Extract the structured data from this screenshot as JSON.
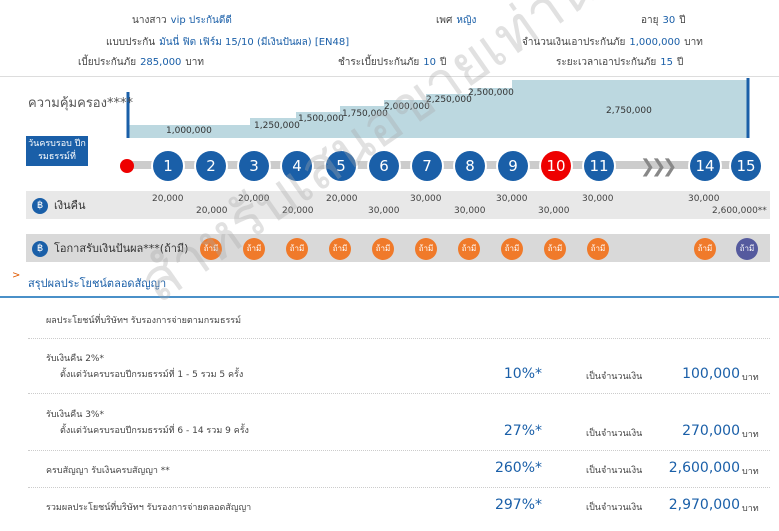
{
  "customer": {
    "title_label": "นางสาว",
    "name": "vip ประกันดีดี",
    "gender_label": "เพศ",
    "gender": "หญิง",
    "age_label": "อายุ",
    "age": "30",
    "age_unit": "ปี"
  },
  "plan": {
    "plan_label": "แบบประกัน",
    "plan_name": "มันนี่ ฟิต เฟิร์ม 15/10 (มีเงินปันผล) [EN48]",
    "sum_label": "จำนวนเงินเอาประกันภัย",
    "sum_value": "1,000,000",
    "sum_unit": "บาท"
  },
  "premium": {
    "premium_label": "เบี้ยประกันภัย",
    "premium_value": "285,000",
    "premium_unit": "บาท",
    "pay_label": "ชำระเบี้ยประกันภัย",
    "pay_years": "10",
    "pay_unit": "ปี",
    "term_label": "ระยะเวลาเอาประกันภัย",
    "term_years": "15",
    "term_unit": "ปี"
  },
  "coverage": {
    "title": "ความคุ้มครอง****",
    "steps": [
      "1,000,000",
      "1,250,000",
      "1,500,000",
      "1,750,000",
      "2,000,000",
      "2,250,000",
      "2,500,000",
      "2,750,000"
    ],
    "badge": "วันครบรอบ ปีกรมธรรม์ที่"
  },
  "timeline": {
    "years": [
      "1",
      "2",
      "3",
      "4",
      "5",
      "6",
      "7",
      "8",
      "9",
      "10",
      "11",
      "14",
      "15"
    ],
    "current": "10"
  },
  "cashback": {
    "label": "เงินคืน",
    "top": [
      "20,000",
      "20,000",
      "20,000",
      "30,000",
      "30,000",
      "30,000"
    ],
    "bottom": [
      "20,000",
      "20,000",
      "30,000",
      "30,000",
      "30,000"
    ],
    "last": "30,000",
    "maturity": "2,600,000**"
  },
  "dividend": {
    "label": "โอกาสรับเงินปันผล***(ถ้ามี)",
    "marker": "ถ้ามี"
  },
  "summary": {
    "title": "สรุปผลประโยชน์ตลอดสัญญา",
    "subtitle": "ผลประโยชน์ที่บริษัทฯ รับรองการจ่ายตามกรมธรรม์",
    "rows": [
      {
        "title": "รับเงินคืน 2%*",
        "desc": "ตั้งแต่วันครบรอบปีกรมธรรม์ที่ 1 - 5 รวม 5 ครั้ง",
        "pct": "10%*",
        "mid": "เป็นจำนวนเงิน",
        "amt": "100,000",
        "unit": "บาท"
      },
      {
        "title": "รับเงินคืน 3%*",
        "desc": "ตั้งแต่วันครบรอบปีกรมธรรม์ที่ 6 - 14 รวม 9 ครั้ง",
        "pct": "27%*",
        "mid": "เป็นจำนวนเงิน",
        "amt": "270,000",
        "unit": "บาท"
      },
      {
        "title": "ครบสัญญา รับเงินครบสัญญา **",
        "desc": "",
        "pct": "260%*",
        "mid": "เป็นจำนวนเงิน",
        "amt": "2,600,000",
        "unit": "บาท"
      },
      {
        "title": "รวมผลประโยชน์ที่บริษัทฯ รับรองการจ่ายตลอดสัญญา",
        "desc": "",
        "pct": "297%*",
        "mid": "เป็นจำนวนเงิน",
        "amt": "2,970,000",
        "unit": "บาท"
      }
    ]
  },
  "watermark": "สำหรับเสนอขายเท่านั้น",
  "colors": {
    "primary": "#1a5fa8",
    "accent": "#e00000",
    "orange": "#f07a2a"
  }
}
